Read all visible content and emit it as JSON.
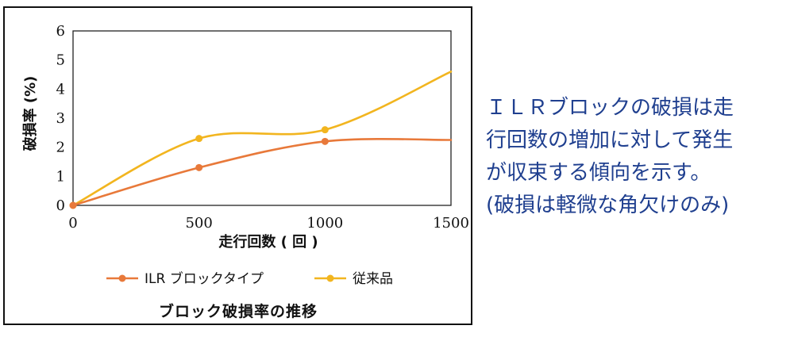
{
  "caption": "ブロック破損率の推移",
  "side_note": {
    "lines": [
      "ＩＬＲブロックの破損は走",
      "行回数の増加に対して発生",
      "が収束する傾向を示す。",
      "(破損は軽微な角欠けのみ)"
    ]
  },
  "colors": {
    "ilr": "#e8793a",
    "conventional": "#f2b51f",
    "note_text": "#1f3f8f"
  },
  "chart_data": {
    "type": "line",
    "title": "",
    "xlabel": "走行回数 ( 回 )",
    "ylabel": "破損率 (%)",
    "xlim": [
      0,
      1500
    ],
    "ylim": [
      0,
      6
    ],
    "x_ticks": [
      "0",
      "500",
      "1000",
      "1500"
    ],
    "y_ticks": [
      "0",
      "1",
      "2",
      "3",
      "4",
      "5",
      "6"
    ],
    "smooth": true,
    "grid": false,
    "legend_position": "bottom",
    "series": [
      {
        "name": "ILR ブロックタイプ",
        "color": "#e8793a",
        "points": [
          [
            0,
            0
          ],
          [
            500,
            1.3
          ],
          [
            1000,
            2.2
          ],
          [
            1500,
            2.25
          ]
        ],
        "markers": [
          [
            0,
            0
          ],
          [
            500,
            1.3
          ],
          [
            1000,
            2.2
          ]
        ]
      },
      {
        "name": "従来品",
        "color": "#f2b51f",
        "points": [
          [
            0,
            0
          ],
          [
            500,
            2.3
          ],
          [
            1000,
            2.6
          ],
          [
            1500,
            4.6
          ]
        ],
        "markers": [
          [
            0,
            0
          ],
          [
            500,
            2.3
          ],
          [
            1000,
            2.6
          ]
        ]
      }
    ]
  }
}
